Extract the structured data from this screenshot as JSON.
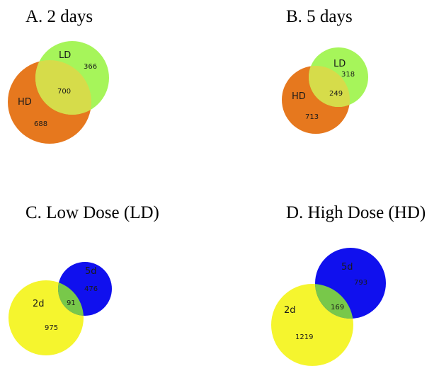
{
  "panels": [
    {
      "id": "A",
      "title": "A. 2 days",
      "sets": [
        {
          "label": "HD",
          "color": "#e6781e",
          "only_count": "688"
        },
        {
          "label": "LD",
          "color": "#a6f55a",
          "only_count": "366"
        }
      ],
      "overlap": {
        "count": "700",
        "color": "#d6dc4a"
      }
    },
    {
      "id": "B",
      "title": "B. 5 days",
      "sets": [
        {
          "label": "HD",
          "color": "#e6781e",
          "only_count": "713"
        },
        {
          "label": "LD",
          "color": "#a6f55a",
          "only_count": "318"
        }
      ],
      "overlap": {
        "count": "249",
        "color": "#d6dc4a"
      }
    },
    {
      "id": "C",
      "title": "C. Low Dose (LD)",
      "sets": [
        {
          "label": "2d",
          "color": "#f5f52e",
          "only_count": "975"
        },
        {
          "label": "5d",
          "color": "#1010ee",
          "only_count": "476"
        }
      ],
      "overlap": {
        "count": "91",
        "color": "#78c84a"
      }
    },
    {
      "id": "D",
      "title": "D. High Dose (HD)",
      "sets": [
        {
          "label": "2d",
          "color": "#f5f52e",
          "only_count": "1219"
        },
        {
          "label": "5d",
          "color": "#1010ee",
          "only_count": "793"
        }
      ],
      "overlap": {
        "count": "169",
        "color": "#78c84a"
      }
    }
  ]
}
